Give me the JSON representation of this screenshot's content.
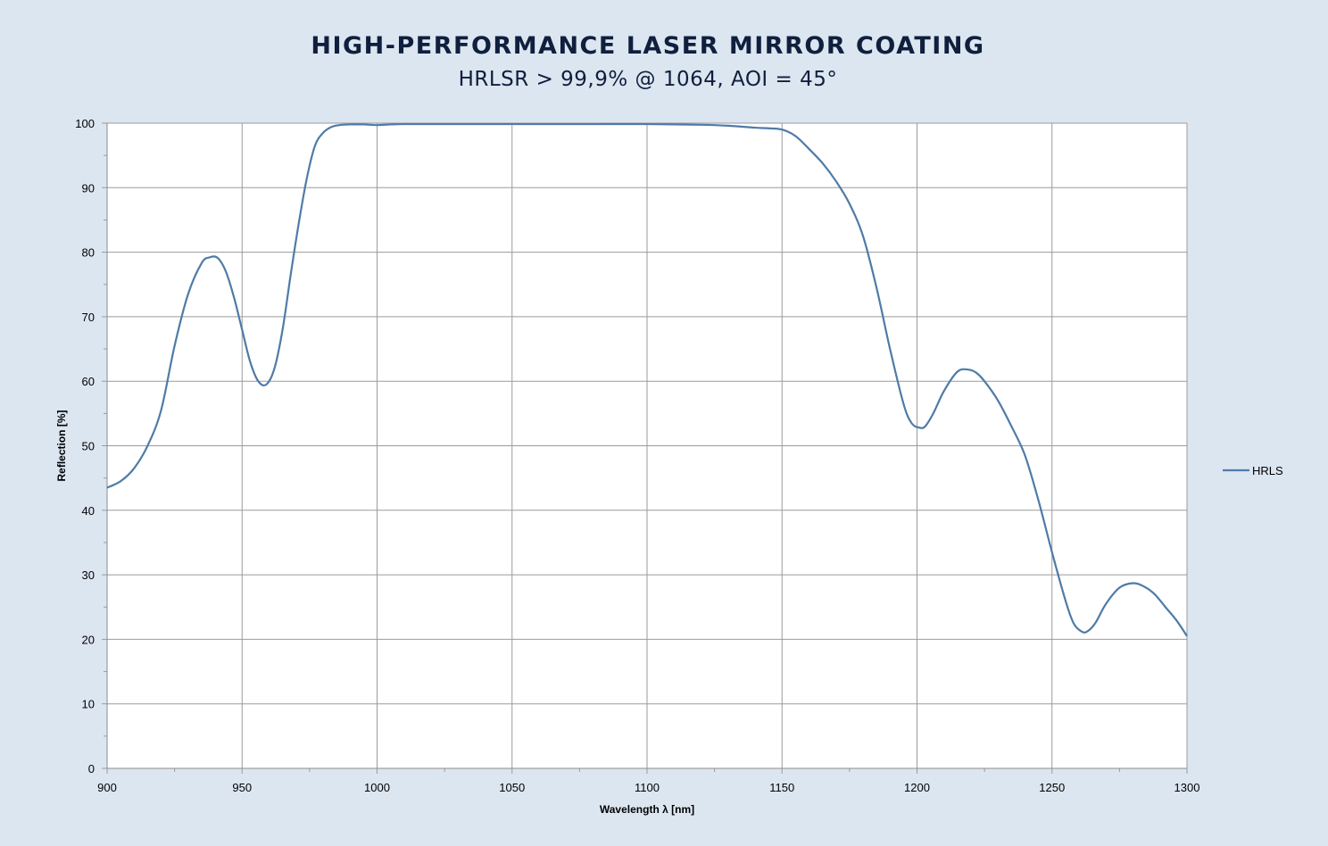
{
  "chart_data": {
    "type": "line",
    "title": "HIGH-PERFORMANCE LASER MIRROR COATING",
    "subtitle": "HRLSR > 99,9% @ 1064, AOI = 45°",
    "xlabel": "Wavelength λ [nm]",
    "ylabel": "Reflection [%]",
    "xlim": [
      900,
      1300
    ],
    "ylim": [
      0,
      100
    ],
    "x_ticks": [
      "900",
      "950",
      "1000",
      "1050",
      "1100",
      "1150",
      "1200",
      "1250",
      "1300"
    ],
    "y_ticks": [
      "0",
      "10",
      "20",
      "30",
      "40",
      "50",
      "60",
      "70",
      "80",
      "90",
      "100"
    ],
    "grid": true,
    "legend_position": "right",
    "colors": {
      "line": "#4f7ba7",
      "grid": "#9b9b9b",
      "background": "#dce6f1",
      "plot": "#ffffff"
    },
    "series": [
      {
        "name": "HRLS",
        "x": [
          900,
          905,
          910,
          915,
          920,
          925,
          930,
          935,
          938,
          941,
          944,
          947,
          950,
          953,
          956,
          959,
          962,
          965,
          968,
          971,
          974,
          977,
          980,
          983,
          986,
          990,
          995,
          1000,
          1005,
          1010,
          1020,
          1040,
          1060,
          1080,
          1100,
          1120,
          1130,
          1140,
          1145,
          1150,
          1155,
          1160,
          1165,
          1170,
          1175,
          1180,
          1185,
          1190,
          1195,
          1198,
          1201,
          1203,
          1206,
          1210,
          1215,
          1219,
          1222,
          1225,
          1230,
          1235,
          1240,
          1245,
          1250,
          1255,
          1258,
          1261,
          1263,
          1266,
          1270,
          1275,
          1280,
          1284,
          1288,
          1292,
          1296,
          1300
        ],
        "values": [
          43.5,
          44.5,
          46.5,
          50,
          55.5,
          65.5,
          73.5,
          78.3,
          79.2,
          79.1,
          77,
          73,
          68,
          63,
          60,
          59.5,
          62,
          68,
          76.5,
          84.5,
          91.5,
          96.5,
          98.5,
          99.4,
          99.7,
          99.8,
          99.8,
          99.7,
          99.8,
          99.85,
          99.85,
          99.85,
          99.85,
          99.85,
          99.85,
          99.75,
          99.6,
          99.3,
          99.2,
          99.0,
          98.0,
          96.0,
          93.8,
          91.0,
          87.5,
          82.5,
          74.5,
          65,
          56.5,
          53.5,
          52.8,
          53.0,
          55,
          58.5,
          61.5,
          61.8,
          61.3,
          60,
          57,
          53,
          48.5,
          41.5,
          33.5,
          26,
          22.5,
          21.2,
          21.2,
          22.5,
          25.5,
          28,
          28.7,
          28.2,
          27,
          25,
          23,
          20.5
        ]
      }
    ]
  }
}
